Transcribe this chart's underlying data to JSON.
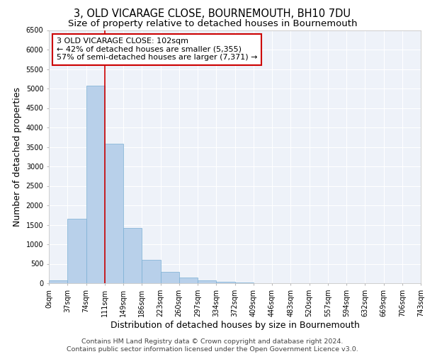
{
  "title_line1": "3, OLD VICARAGE CLOSE, BOURNEMOUTH, BH10 7DU",
  "title_line2": "Size of property relative to detached houses in Bournemouth",
  "xlabel": "Distribution of detached houses by size in Bournemouth",
  "ylabel": "Number of detached properties",
  "footer_line1": "Contains HM Land Registry data © Crown copyright and database right 2024.",
  "footer_line2": "Contains public sector information licensed under the Open Government Licence v3.0.",
  "bin_labels": [
    "0sqm",
    "37sqm",
    "74sqm",
    "111sqm",
    "149sqm",
    "186sqm",
    "223sqm",
    "260sqm",
    "297sqm",
    "334sqm",
    "372sqm",
    "409sqm",
    "446sqm",
    "483sqm",
    "520sqm",
    "557sqm",
    "594sqm",
    "632sqm",
    "669sqm",
    "706sqm",
    "743sqm"
  ],
  "bar_values": [
    70,
    1650,
    5075,
    3575,
    1425,
    600,
    300,
    150,
    75,
    30,
    10,
    5,
    0,
    0,
    0,
    0,
    0,
    0,
    0,
    0
  ],
  "bar_color": "#b8d0ea",
  "bar_edgecolor": "#7aafd4",
  "red_line_x": 3,
  "red_line_color": "#cc0000",
  "annotation_text": "3 OLD VICARAGE CLOSE: 102sqm\n← 42% of detached houses are smaller (5,355)\n57% of semi-detached houses are larger (7,371) →",
  "annotation_box_facecolor": "#ffffff",
  "annotation_box_edgecolor": "#cc0000",
  "ylim": [
    0,
    6500
  ],
  "yticks": [
    0,
    500,
    1000,
    1500,
    2000,
    2500,
    3000,
    3500,
    4000,
    4500,
    5000,
    5500,
    6000,
    6500
  ],
  "bg_color": "#eef2f9",
  "grid_color": "#ffffff",
  "title_fontsize": 10.5,
  "subtitle_fontsize": 9.5,
  "axis_label_fontsize": 9,
  "tick_fontsize": 7,
  "annot_fontsize": 8,
  "footer_fontsize": 6.8
}
